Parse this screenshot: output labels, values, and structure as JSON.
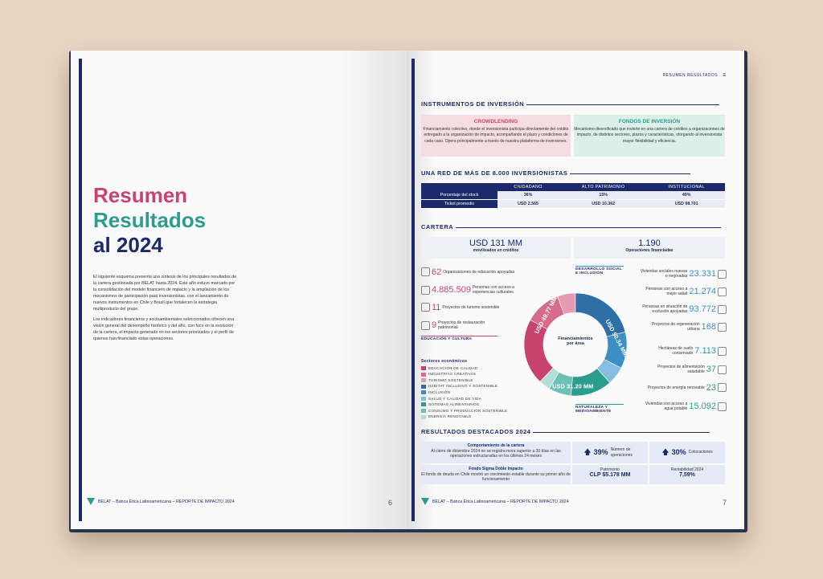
{
  "left": {
    "title": {
      "l1": "Resumen",
      "l2": "Resultados",
      "l3": "al 2024"
    },
    "p1": "El siguiente esquema presenta una síntesis de los principales resultados de la cartera gestionada por BELAT hasta 2024. Este año estuvo marcado por la consolidación del modelo financiero de impacto y la ampliación de los mecanismos de participación para inversionistas, con el lanzamiento de nuevos instrumentos en Chile y Brasil que fortalecen la estrategia multiproducto del grupo.",
    "p2": "Los indicadores financieros y socioambientales seleccionados ofrecen una visión general del desempeño histórico y del año, con foco en la evolución de la cartera, el impacto generado en los sectores priorizados y el perfil de quienes han financiado estas operaciones.",
    "footer": "BELAT – Banca Ética Latinoamericana – REPORTE DE IMPACTO 2024",
    "page": "6"
  },
  "right": {
    "header": "RESUMEN RESULTADOS",
    "sec1": "INSTRUMENTOS DE INVERSIÓN",
    "crowd": {
      "title": "CROWDLENDING",
      "text": "Financiamiento colectivo, donde el inversionista participa directamente del crédito entregado a la organización de impacto, acompañando el plazo y condiciones de cada caso. Opera principalmente a través de nuestra plataforma de inversiones."
    },
    "fondos": {
      "title": "FONDOS DE INVERSIÓN",
      "text": "Mecanismo diversificado que invierte en una cartera de créditos a organizaciones de impacto, de distintos sectores, plazos y características, otorgando al inversionista mayor flexibilidad y eficiencia."
    },
    "sec2": "UNA RED DE MÁS DE 8.000 INVERSIONISTAS",
    "table": {
      "cols": [
        "CIUDADANO",
        "ALTO PATRIMONIO",
        "INSTITUCIONAL"
      ],
      "r1": {
        "label": "Porcentaje del stock",
        "v": [
          "36%",
          "15%",
          "49%"
        ]
      },
      "r2": {
        "label": "Ticket promedio",
        "v": [
          "USD 2.565",
          "USD 10.362",
          "USD 98.701"
        ]
      }
    },
    "sec3": "CARTERA",
    "kpi1": {
      "big": "USD 131 MM",
      "sm": "movilizados en créditos"
    },
    "kpi2": {
      "big": "1.190",
      "sm": "Operaciones financiadas"
    },
    "edu": [
      {
        "n": "62",
        "t": "Organizaciones de educación apoyadas"
      },
      {
        "n": "4.885.509",
        "t": "Personas con acceso a experiencias culturales"
      },
      {
        "n": "11",
        "t": "Proyectos de turismo sostenible"
      },
      {
        "n": "9",
        "t": "Proyectos de restauración patrimonial"
      }
    ],
    "edu_tag": "EDUCACIÓN Y CULTURA",
    "soc_tag": "DESARROLLO SOCIAL E INCLUSIÓN",
    "soc": [
      {
        "n": "23.331",
        "t": "Viviendas sociales nuevas o mejoradas"
      },
      {
        "n": "21.274",
        "t": "Personas con acceso a mejor salud"
      },
      {
        "n": "93.772",
        "t": "Personas en situación de exclusión apoyadas"
      },
      {
        "n": "168",
        "t": "Proyectos de regeneración urbana"
      }
    ],
    "nat": [
      {
        "n": "7.113",
        "t": "Hectáreas de suelo conservado"
      },
      {
        "n": "37",
        "t": "Proyectos de alimentación saludable"
      },
      {
        "n": "23",
        "t": "Proyectos de energía renovable"
      },
      {
        "n": "15.092",
        "t": "Viviendas con acceso a agua potable"
      }
    ],
    "nat_tag": "NATURALEZA Y MEDIOAMBIENTE",
    "legend_title": "Sectores económicos",
    "legend": [
      "EDUCACIÓN DE CALIDAD",
      "INDUSTRIAS CREATIVAS",
      "TURISMO SOSTENIBLE",
      "HÁBITAT INCLUSIVO Y SOSTENIBLE",
      "INCLUSIÓN",
      "SALUD Y CALIDAD DE VIDA",
      "SISTEMAS ALIMENTARIOS",
      "CONSUMO Y PRODUCCIÓN SOSTENIBLE",
      "ENERGÍA RENOVABLE"
    ],
    "donut": {
      "center": "Financiamientos por área",
      "a": "USD 49.77 MM",
      "b": "USD 50.34 MM",
      "c": "USD 31.20 MM"
    },
    "sec4": "RESULTADOS DESTACADOS 2024",
    "r1": {
      "title": "Comportamiento de la cartera",
      "text": "Al cierre de diciembre 2024 no se registra mora superior a 30 días en las operaciones estructuradas en los últimos 24 meses"
    },
    "r1a": {
      "n": "39%",
      "t": "Número de operaciones"
    },
    "r1b": {
      "n": "30%",
      "t": "Colocaciones"
    },
    "r2": {
      "title": "Fondo Sigma Doble Impacto",
      "text": "El fondo de deuda en Chile mostró un crecimiento estable durante su primer año de funcionamiento"
    },
    "r2a": {
      "t": "Patrimonio",
      "n": "CLP $5.178 MM"
    },
    "r2b": {
      "t": "Rentabilidad 2024",
      "n": "7,59%"
    },
    "footer": "BELAT – Banca Ética Latinoamericana – REPORTE DE IMPACTO 2024",
    "page": "7"
  }
}
